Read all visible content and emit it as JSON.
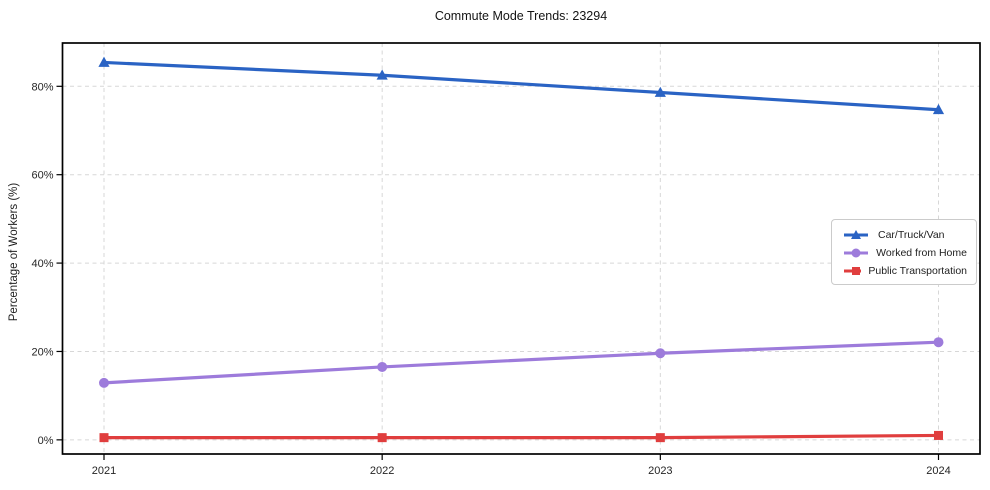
{
  "figure": {
    "title": "Commute Mode Trends: 23294",
    "ylabel": "Percentage of Workers (%)"
  },
  "chart_data": {
    "type": "line",
    "title": "Commute Mode Trends: 23294",
    "categories": [
      "2021",
      "2022",
      "2023",
      "2024"
    ],
    "series": [
      {
        "name": "Car/Truck/Van",
        "color": "#2a63c4",
        "marker": "triangle",
        "values": [
          85.4,
          82.5,
          78.6,
          74.7
        ]
      },
      {
        "name": "Worked from Home",
        "color": "#9d7bdb",
        "marker": "circle",
        "values": [
          12.9,
          16.5,
          19.6,
          22.1
        ]
      },
      {
        "name": "Public Transportation",
        "color": "#e03e3e",
        "marker": "square",
        "values": [
          0.5,
          0.5,
          0.5,
          1.0
        ]
      }
    ],
    "xlabel": "",
    "ylabel": "Percentage of Workers (%)",
    "ylim": [
      -3.2,
      89.8
    ],
    "yticks": [
      0,
      20,
      40,
      60,
      80
    ],
    "ytick_labels": [
      "0%",
      "20%",
      "40%",
      "60%",
      "80%"
    ],
    "grid": true,
    "grid_style": "dashed",
    "legend_position": "center-right"
  }
}
